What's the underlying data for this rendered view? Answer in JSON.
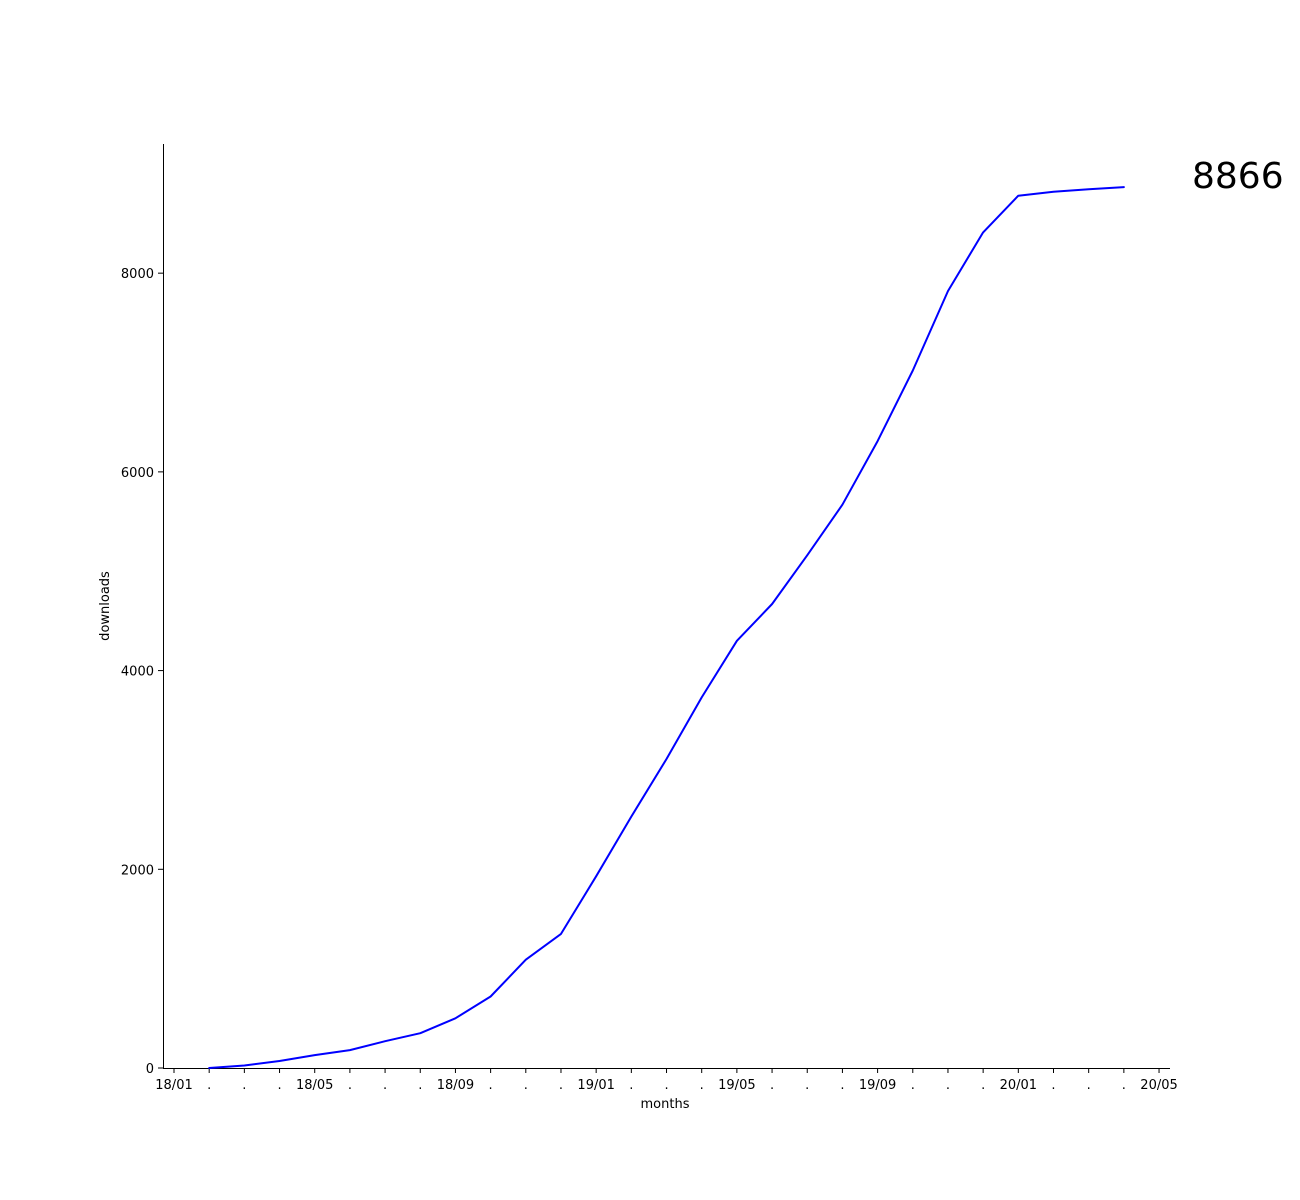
{
  "chart_data": {
    "type": "line",
    "xlabel": "months",
    "ylabel": "downloads",
    "ylim": [
      0,
      9300
    ],
    "grid": false,
    "x_tick_labels": [
      "18/01",
      ".",
      ".",
      ".",
      "18/05",
      ".",
      ".",
      ".",
      "18/09",
      ".",
      ".",
      ".",
      "19/01",
      ".",
      ".",
      ".",
      "19/05",
      ".",
      ".",
      ".",
      "19/09",
      ".",
      ".",
      ".",
      "20/01",
      ".",
      ".",
      ".",
      "20/05"
    ],
    "y_ticks": [
      0,
      2000,
      4000,
      6000,
      8000
    ],
    "y_tick_labels": [
      "0",
      "2000",
      "4000",
      "6000",
      "8000"
    ],
    "annotation": "8866",
    "series": [
      {
        "color": "#0000ff",
        "x": [
          "18/02",
          "18/03",
          "18/04",
          "18/05",
          "18/06",
          "18/07",
          "18/08",
          "18/09",
          "18/10",
          "18/11",
          "18/12",
          "19/01",
          "19/02",
          "19/03",
          "19/04",
          "19/05",
          "19/06",
          "19/07",
          "19/08",
          "19/09",
          "19/10",
          "19/11",
          "19/12",
          "20/01",
          "20/02",
          "20/03",
          "20/04"
        ],
        "values": [
          0,
          25,
          70,
          130,
          180,
          270,
          350,
          500,
          720,
          1090,
          1350,
          1930,
          2530,
          3110,
          3730,
          4300,
          4670,
          5160,
          5670,
          6310,
          7020,
          7820,
          8410,
          8780,
          8820,
          8845,
          8866
        ]
      }
    ]
  }
}
